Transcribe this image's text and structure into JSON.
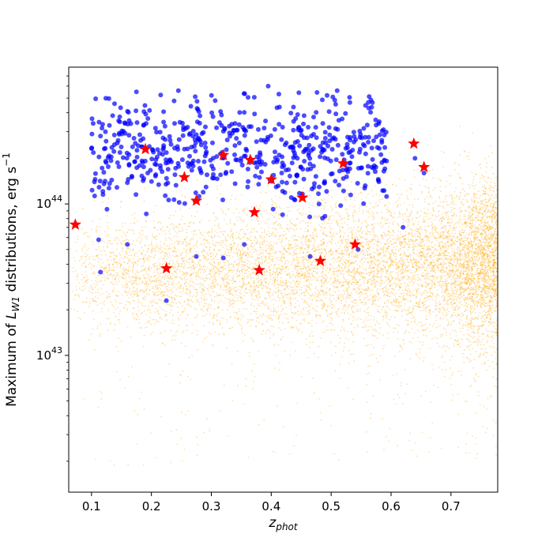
{
  "chart_data": {
    "type": "scatter",
    "x_scale": "linear",
    "y_scale": "log",
    "xlim": [
      0.062,
      0.778
    ],
    "ylim": [
      1.25e+42,
      8e+44
    ],
    "xlabel": "z_phot",
    "ylabel": "Maximum of L_W1 distributions, erg s^-1",
    "x_ticks": [
      {
        "value": 0.1,
        "label": "0.1"
      },
      {
        "value": 0.2,
        "label": "0.2"
      },
      {
        "value": 0.3,
        "label": "0.3"
      },
      {
        "value": 0.4,
        "label": "0.4"
      },
      {
        "value": 0.5,
        "label": "0.5"
      },
      {
        "value": 0.6,
        "label": "0.6"
      },
      {
        "value": 0.7,
        "label": "0.7"
      }
    ],
    "y_major_ticks": [
      {
        "value": 1e+43,
        "mantissa": "10",
        "exponent": "43"
      },
      {
        "value": 1e+44,
        "mantissa": "10",
        "exponent": "44"
      }
    ],
    "colors": {
      "background_population": "#ffa500",
      "selected_population": "#0000ff",
      "highlighted": "#ff0000"
    },
    "series": [
      {
        "marker": "dot",
        "color": "#ffa500",
        "alpha": 0.35,
        "approx_count": 9000,
        "distribution": {
          "x_range": [
            0.065,
            0.778
          ],
          "log10_y_center_low_z": 43.55,
          "log10_y_center_high_z": 43.62,
          "log10_y_spread": 0.22,
          "density_increases_with_x": true
        }
      },
      {
        "marker": "circle",
        "color": "#0000ff",
        "alpha": 0.7,
        "approx_count": 600,
        "distribution": {
          "x_range": [
            0.1,
            0.66
          ],
          "log10_y_range": [
            43.9,
            44.75
          ],
          "log10_y_center": 44.35
        },
        "sample_points": [
          [
            0.115,
            3.55e+43
          ],
          [
            0.225,
            2.3e+43
          ],
          [
            0.112,
            5.8e+43
          ],
          [
            0.16,
            5.4e+43
          ],
          [
            0.275,
            4.5e+43
          ],
          [
            0.32,
            4.4e+43
          ],
          [
            0.465,
            4.5e+43
          ],
          [
            0.545,
            5e+43
          ],
          [
            0.62,
            7e+43
          ],
          [
            0.175,
            5.5e+44
          ],
          [
            0.245,
            5.6e+44
          ],
          [
            0.395,
            6e+44
          ],
          [
            0.51,
            5.6e+44
          ],
          [
            0.64,
            2e+44
          ],
          [
            0.655,
            1.6e+44
          ],
          [
            0.355,
            5.4e+43
          ]
        ]
      },
      {
        "marker": "star",
        "color": "#ff0000",
        "points": [
          [
            0.073,
            7.3e+43
          ],
          [
            0.19,
            2.3e+44
          ],
          [
            0.225,
            3.75e+43
          ],
          [
            0.255,
            1.5e+44
          ],
          [
            0.275,
            1.05e+44
          ],
          [
            0.32,
            2.1e+44
          ],
          [
            0.365,
            1.95e+44
          ],
          [
            0.372,
            8.8e+43
          ],
          [
            0.38,
            3.65e+43
          ],
          [
            0.4,
            1.45e+44
          ],
          [
            0.452,
            1.1e+44
          ],
          [
            0.482,
            4.2e+43
          ],
          [
            0.52,
            1.85e+44
          ],
          [
            0.54,
            5.4e+43
          ],
          [
            0.638,
            2.5e+44
          ],
          [
            0.655,
            1.75e+44
          ]
        ]
      }
    ]
  }
}
